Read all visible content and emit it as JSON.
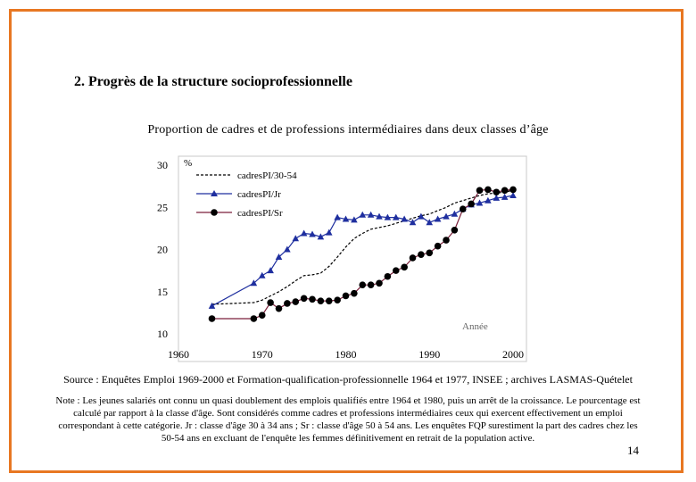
{
  "section_title": "2. Progrès de la structure socioprofessionnelle",
  "page_number": "14",
  "source": "Source : Enquêtes Emploi 1969-2000 et Formation-qualification-professionnelle 1964 et 1977, INSEE ; archives LASMAS-Quételet",
  "note": "Note : Les jeunes salariés ont connu un quasi doublement des emplois qualifiés entre 1964 et 1980, puis un arrêt de la croissance. Le pourcentage est calculé par rapport à la classe d'âge. Sont considérés comme cadres et professions intermédiaires ceux qui exercent effectivement un emploi correspondant à cette catégorie. Jr : classe d'âge 30 à 34 ans ; Sr : classe d'âge 50 à 54 ans. Les enquêtes FQP surestiment la part des cadres chez les 50-54 ans en excluant de l'enquête les femmes définitivement en retrait de la population active.",
  "chart_data": {
    "type": "line",
    "title": "Proportion de cadres et de professions intermédiaires dans deux classes d’âge",
    "ylabel": "%",
    "xlabel": "Année",
    "xlim": [
      1960,
      2000
    ],
    "ylim": [
      10,
      30
    ],
    "xticks": [
      1960,
      1970,
      1980,
      1990,
      2000
    ],
    "yticks": [
      10,
      15,
      20,
      25,
      30
    ],
    "legend_position": "top-left",
    "series": [
      {
        "name": "cadresPI/30-54",
        "style": "dashed",
        "x": [
          1964,
          1969,
          1970,
          1971,
          1972,
          1973,
          1974,
          1975,
          1976,
          1977,
          1978,
          1979,
          1980,
          1981,
          1982,
          1983,
          1984,
          1985,
          1986,
          1987,
          1988,
          1989,
          1990,
          1991,
          1992,
          1993,
          1994,
          1995,
          1996,
          1997,
          1998,
          1999,
          2000
        ],
        "values": [
          13.5,
          13.7,
          14.0,
          14.5,
          15.0,
          15.6,
          16.3,
          16.9,
          17.0,
          17.2,
          18.0,
          19.1,
          20.3,
          21.3,
          21.9,
          22.4,
          22.6,
          22.8,
          23.1,
          23.4,
          23.7,
          24.0,
          24.2,
          24.6,
          25.0,
          25.5,
          25.8,
          26.1,
          26.4,
          26.6,
          26.7,
          26.8,
          27.0
        ]
      },
      {
        "name": "cadresPI/Jr",
        "style": "triangle",
        "x": [
          1964,
          1969,
          1970,
          1971,
          1972,
          1973,
          1974,
          1975,
          1976,
          1977,
          1978,
          1979,
          1980,
          1981,
          1982,
          1983,
          1984,
          1985,
          1986,
          1987,
          1988,
          1989,
          1990,
          1991,
          1992,
          1993,
          1994,
          1995,
          1996,
          1997,
          1998,
          1999,
          2000
        ],
        "values": [
          13.3,
          16.0,
          16.9,
          17.5,
          19.1,
          20.0,
          21.3,
          21.9,
          21.8,
          21.5,
          22.0,
          23.8,
          23.6,
          23.5,
          24.1,
          24.1,
          23.9,
          23.8,
          23.8,
          23.6,
          23.2,
          23.9,
          23.2,
          23.6,
          23.9,
          24.2,
          24.8,
          25.3,
          25.5,
          25.8,
          26.1,
          26.2,
          26.4
        ]
      },
      {
        "name": "cadresPI/Sr",
        "style": "circle",
        "x": [
          1964,
          1969,
          1970,
          1971,
          1972,
          1973,
          1974,
          1975,
          1976,
          1977,
          1978,
          1979,
          1980,
          1981,
          1982,
          1983,
          1984,
          1985,
          1986,
          1987,
          1988,
          1989,
          1990,
          1991,
          1992,
          1993,
          1994,
          1995,
          1996,
          1997,
          1998,
          1999,
          2000
        ],
        "values": [
          11.8,
          11.8,
          12.2,
          13.7,
          13.0,
          13.6,
          13.8,
          14.2,
          14.1,
          13.9,
          13.9,
          14.0,
          14.5,
          14.8,
          15.8,
          15.8,
          16.0,
          16.8,
          17.5,
          17.9,
          19.0,
          19.4,
          19.6,
          20.4,
          21.1,
          22.3,
          24.8,
          25.4,
          27.0,
          27.1,
          26.8,
          27.0,
          27.1
        ]
      }
    ]
  }
}
